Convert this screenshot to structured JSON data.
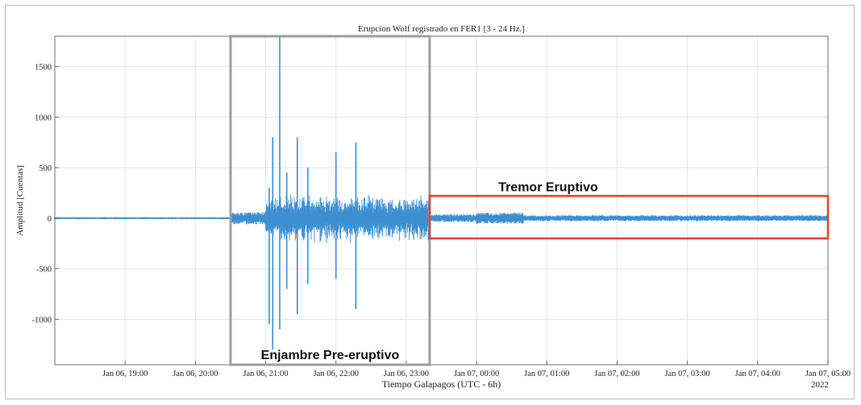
{
  "chart_data": {
    "type": "line",
    "title": "Erupcion Wolf registrado en FER1 [3 - 24 Hz.]",
    "xlabel": "Tiempo Galapagos (UTC - 6h)",
    "ylabel": "Amplitud [Cuentas]",
    "x_secondary_label": "2022",
    "xlim": [
      "2022-01-06T18:00",
      "2022-01-07T05:00"
    ],
    "ylim": [
      -1450,
      1800
    ],
    "x_ticks": [
      {
        "t": "2022-01-06T19:00",
        "label": "Jan 06, 19:00"
      },
      {
        "t": "2022-01-06T20:00",
        "label": "Jan 06, 20:00"
      },
      {
        "t": "2022-01-06T21:00",
        "label": "Jan 06, 21:00"
      },
      {
        "t": "2022-01-06T22:00",
        "label": "Jan 06, 22:00"
      },
      {
        "t": "2022-01-06T23:00",
        "label": "Jan 06, 23:00"
      },
      {
        "t": "2022-01-07T00:00",
        "label": "Jan 07, 00:00"
      },
      {
        "t": "2022-01-07T01:00",
        "label": "Jan 07, 01:00"
      },
      {
        "t": "2022-01-07T02:00",
        "label": "Jan 07, 02:00"
      },
      {
        "t": "2022-01-07T03:00",
        "label": "Jan 07, 03:00"
      },
      {
        "t": "2022-01-07T04:00",
        "label": "Jan 07, 04:00"
      },
      {
        "t": "2022-01-07T05:00",
        "label": "Jan 07, 05:00"
      }
    ],
    "y_ticks": [
      {
        "v": 1500,
        "label": "1500"
      },
      {
        "v": 1000,
        "label": "1000"
      },
      {
        "v": 500,
        "label": "500"
      },
      {
        "v": 0,
        "label": "0"
      },
      {
        "v": -500,
        "label": "-500"
      },
      {
        "v": -1000,
        "label": "-1000"
      }
    ],
    "grid": true,
    "line_color": "#3d8fd1",
    "series": [
      {
        "segments": [
          {
            "start": "2022-01-06T18:00",
            "end": "2022-01-06T20:30",
            "amplitude": 10
          },
          {
            "start": "2022-01-06T20:30",
            "end": "2022-01-06T21:00",
            "amplitude": 60
          },
          {
            "start": "2022-01-06T21:00",
            "end": "2022-01-06T23:20",
            "amplitude": 250
          },
          {
            "start": "2022-01-06T23:20",
            "end": "2022-01-07T00:00",
            "amplitude": 40
          },
          {
            "start": "2022-01-07T00:00",
            "end": "2022-01-07T00:40",
            "amplitude": 55
          },
          {
            "start": "2022-01-07T00:40",
            "end": "2022-01-07T05:00",
            "amplitude": 30
          }
        ],
        "spikes": [
          {
            "t": "2022-01-06T21:03",
            "min": -1050,
            "max": 300
          },
          {
            "t": "2022-01-06T21:06",
            "min": -1300,
            "max": 800
          },
          {
            "t": "2022-01-06T21:12",
            "min": -1100,
            "max": 1800
          },
          {
            "t": "2022-01-06T21:18",
            "min": -700,
            "max": 450
          },
          {
            "t": "2022-01-06T21:27",
            "min": -950,
            "max": 800
          },
          {
            "t": "2022-01-06T21:36",
            "min": -650,
            "max": 500
          },
          {
            "t": "2022-01-06T22:00",
            "min": -600,
            "max": 650
          },
          {
            "t": "2022-01-06T22:17",
            "min": -900,
            "max": 750
          }
        ]
      }
    ],
    "annotations": [
      {
        "text": "Enjambre Pre-eruptivo",
        "box_start": "2022-01-06T20:30",
        "box_end": "2022-01-06T23:20",
        "box_ymin": -1450,
        "box_ymax": 1800,
        "color": "#9e9e9e"
      },
      {
        "text": "Tremor Eruptivo",
        "box_start": "2022-01-06T23:20",
        "box_end": "2022-01-07T05:00",
        "box_ymin": -200,
        "box_ymax": 220,
        "color": "#e8402d"
      }
    ]
  }
}
